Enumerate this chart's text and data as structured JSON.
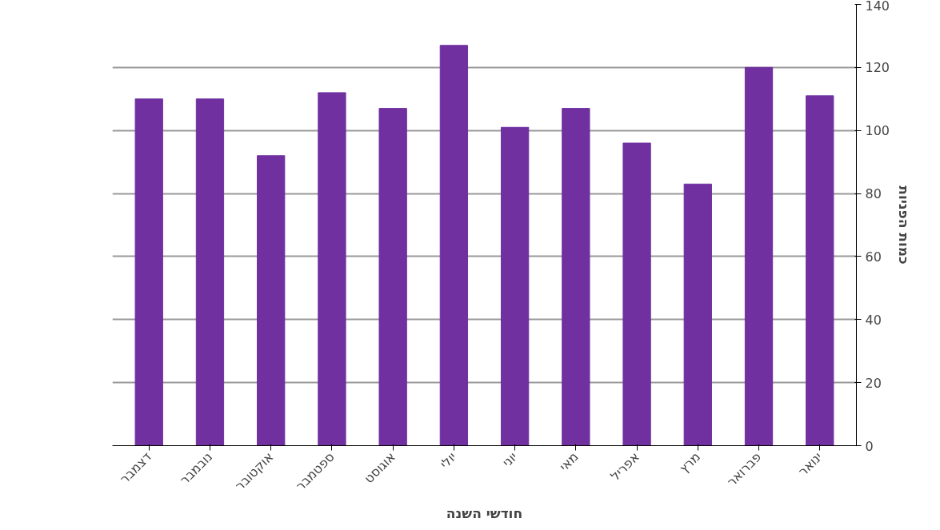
{
  "chart_data": {
    "type": "bar",
    "xlabel": "חודשי השנה",
    "ylabel": "כמות הפניות",
    "categories": [
      "דצמבר",
      "נובמבר",
      "אוקטובר",
      "ספטמבר",
      "אוגוסט",
      "יולי",
      "יוני",
      "מאי",
      "אפריל",
      "מרץ",
      "פברואר",
      "ינואר"
    ],
    "values": [
      110,
      110,
      92,
      112,
      107,
      127,
      101,
      107,
      96,
      83,
      120,
      111
    ],
    "color": "#7030a0",
    "ylim": [
      0,
      140
    ],
    "yticks": [
      0,
      20,
      40,
      60,
      80,
      100,
      120,
      140
    ],
    "grid": "y"
  }
}
